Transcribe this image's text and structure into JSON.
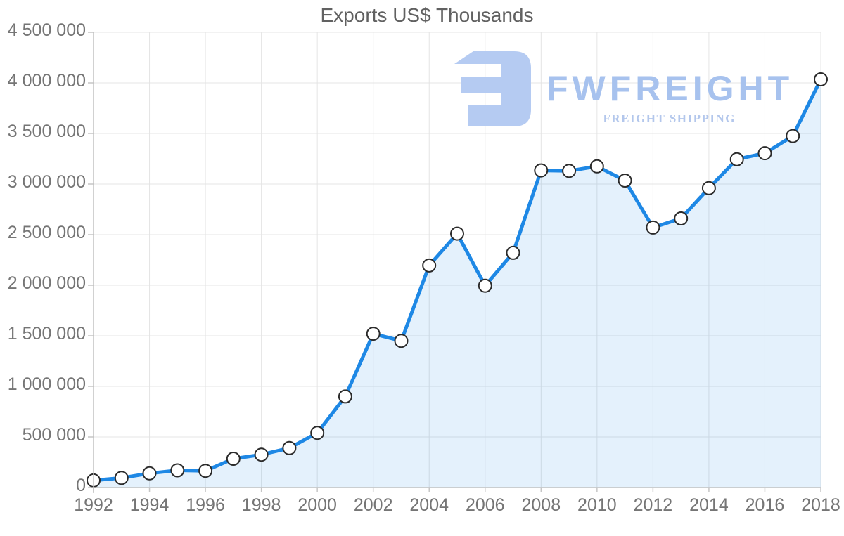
{
  "watermark": {
    "brand": "FWFREIGHT",
    "tagline": "FREIGHT SHIPPING",
    "mark_color": "#b5cbf2",
    "brand_color": "#a7c2ee",
    "tagline_color": "#b3c7ec"
  },
  "chart_data": {
    "type": "line",
    "title": "Exports US$ Thousands",
    "x": [
      1992,
      1993,
      1994,
      1995,
      1996,
      1997,
      1998,
      1999,
      2000,
      2001,
      2002,
      2003,
      2004,
      2005,
      2006,
      2007,
      2008,
      2009,
      2010,
      2011,
      2012,
      2013,
      2014,
      2015,
      2016,
      2017,
      2018
    ],
    "series": [
      {
        "name": "Exports US$ Thousands",
        "values": [
          70000,
          95000,
          140000,
          170000,
          165000,
          285000,
          325000,
          390000,
          540000,
          900000,
          1520000,
          1450000,
          2195000,
          2510000,
          1995000,
          2320000,
          3135000,
          3130000,
          3175000,
          3035000,
          2570000,
          2660000,
          2960000,
          3245000,
          3305000,
          3475000,
          4035000
        ]
      }
    ],
    "xlabel": "",
    "ylabel": "",
    "xlim": [
      1992,
      2018
    ],
    "ylim": [
      0,
      4500000
    ],
    "x_tick_interval": 2,
    "y_tick_interval": 500000,
    "y_tick_format": "space-thousands",
    "grid": true,
    "legend_position": "none",
    "marker": "circle",
    "fill_area": true,
    "colors": {
      "line": "#1e88e5",
      "area_fill": "rgba(30,136,229,0.12)",
      "marker_fill": "#ffffff",
      "marker_stroke": "#2b2b2b",
      "gridline": "#e4e4e4",
      "axis_line": "#c2c2c2",
      "tick": "#c6c6c6",
      "axis_label": "#757575",
      "title": "#616161"
    }
  }
}
